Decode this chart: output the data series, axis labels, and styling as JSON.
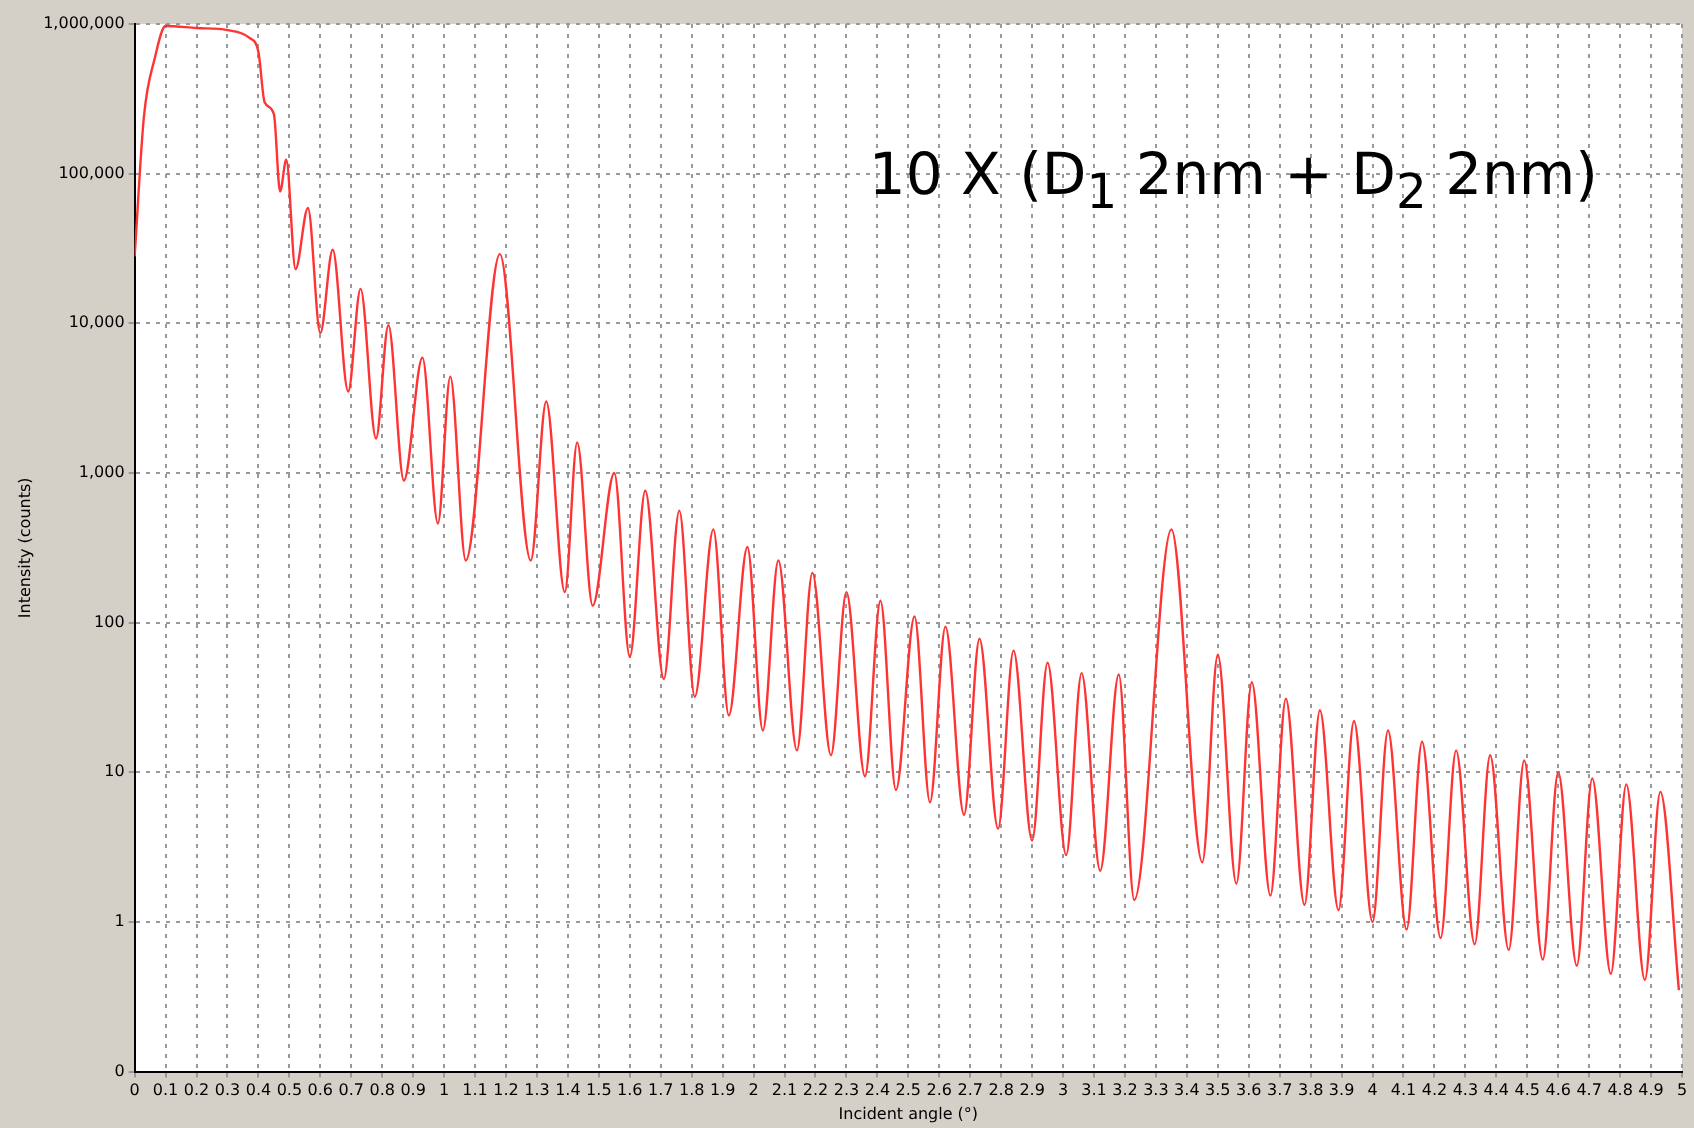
{
  "chart_data": {
    "type": "line",
    "xlabel": "Incident angle (°)",
    "ylabel": "Intensity (counts)",
    "annotations": [
      "10 X (D$_{1}$ 2nm + D$_{2}$ 2nm)"
    ],
    "x": [
      0,
      0.03,
      0.065,
      0.1,
      0.2,
      0.3,
      0.37,
      0.4,
      0.42,
      0.45,
      0.47,
      0.49,
      0.52,
      0.56,
      0.6,
      0.64,
      0.69,
      0.73,
      0.78,
      0.82,
      0.87,
      0.93,
      0.98,
      1.02,
      1.07,
      1.18,
      1.28,
      1.33,
      1.39,
      1.43,
      1.48,
      1.55,
      1.6,
      1.65,
      1.71,
      1.76,
      1.81,
      1.87,
      1.92,
      1.98,
      2.03,
      2.08,
      2.14,
      2.19,
      2.25,
      2.3,
      2.36,
      2.41,
      2.46,
      2.52,
      2.57,
      2.62,
      2.68,
      2.73,
      2.79,
      2.84,
      2.9,
      2.95,
      3.01,
      3.06,
      3.12,
      3.18,
      3.23,
      3.35,
      3.45,
      3.5,
      3.56,
      3.61,
      3.67,
      3.72,
      3.78,
      3.83,
      3.89,
      3.94,
      4.0,
      4.05,
      4.11,
      4.16,
      4.22,
      4.27,
      4.33,
      4.38,
      4.44,
      4.49,
      4.55,
      4.6,
      4.66,
      4.71,
      4.77,
      4.82,
      4.88,
      4.93,
      4.99
    ],
    "series": [
      {
        "color": "#ff3333",
        "values": [
          28000,
          240000,
          590000,
          970000,
          940000,
          910000,
          810000,
          650000,
          300000,
          250000,
          76000,
          124000,
          23000,
          59000,
          8600,
          31000,
          3500,
          17000,
          1700,
          9700,
          890,
          5900,
          460,
          4400,
          260,
          29000,
          260,
          3000,
          160,
          1600,
          130,
          1000,
          59,
          760,
          42,
          560,
          32,
          420,
          24,
          320,
          19,
          260,
          14,
          215,
          13,
          160,
          9.4,
          140,
          7.6,
          110,
          6.3,
          94,
          5.2,
          78,
          4.2,
          65,
          3.5,
          54,
          2.8,
          46,
          2.2,
          45,
          1.4,
          420,
          2.5,
          61,
          1.8,
          40,
          1.5,
          31,
          1.3,
          26,
          1.2,
          22,
          1.0,
          19,
          0.89,
          16,
          0.78,
          14,
          0.71,
          13,
          0.65,
          12,
          0.56,
          10,
          0.51,
          9.1,
          0.45,
          8.3,
          0.41,
          7.4,
          0.35
        ]
      }
    ],
    "log": "y",
    "xlim": [
      0,
      5
    ],
    "ylim": [
      0.1,
      1000000
    ],
    "xticks": [
      0,
      0.1,
      0.2,
      0.3,
      0.4,
      0.5,
      0.6,
      0.7,
      0.8,
      0.9,
      1,
      1.1,
      1.2,
      1.3,
      1.4,
      1.5,
      1.6,
      1.7,
      1.8,
      1.9,
      2,
      2.1,
      2.2,
      2.3,
      2.4,
      2.5,
      2.6,
      2.7,
      2.8,
      2.9,
      3,
      3.1,
      3.2,
      3.3,
      3.4,
      3.5,
      3.6,
      3.7,
      3.8,
      3.9,
      4,
      4.1,
      4.2,
      4.3,
      4.4,
      4.5,
      4.6,
      4.7,
      4.8,
      4.9,
      5
    ],
    "yticks": [
      {
        "value": 0.1,
        "label": "0"
      },
      {
        "value": 1,
        "label": "1"
      },
      {
        "value": 10,
        "label": "10"
      },
      {
        "value": 100,
        "label": "100"
      },
      {
        "value": 1000,
        "label": "1,000"
      },
      {
        "value": 10000,
        "label": "10,000"
      },
      {
        "value": 100000,
        "label": "100,000"
      },
      {
        "value": 1000000,
        "label": "1,000,000"
      }
    ],
    "grid": true,
    "legend": false,
    "marker": "none",
    "line_style": "solid"
  }
}
